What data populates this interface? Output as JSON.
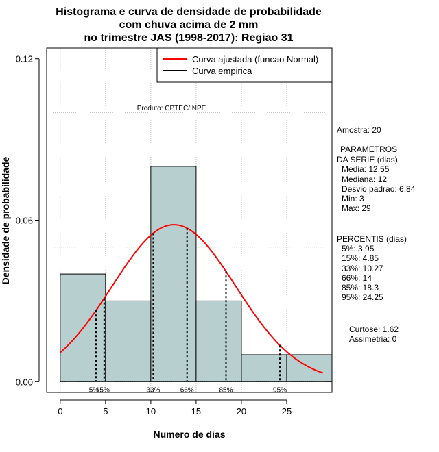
{
  "chart_data": {
    "type": "histogram",
    "title": [
      "Histograma e curva de densidade de probabilidade",
      "com chuva acima de 2 mm",
      "no trimestre JAS (1998-2017): Regiao 31"
    ],
    "xlabel": "Numero de dias",
    "ylabel": "Densidade de probabilidade",
    "xlim": [
      -1.5,
      30
    ],
    "ylim": [
      -0.004,
      0.124
    ],
    "xticks": [
      0,
      5,
      10,
      15,
      20,
      25
    ],
    "xtick_labels": [
      "0",
      "5",
      "10",
      "15",
      "20",
      "25"
    ],
    "yticks": [
      0.0,
      0.06,
      0.12
    ],
    "ytick_labels": [
      "0.00",
      "0.06",
      "0.12"
    ],
    "grid_lines_y": [
      0.1,
      0.05
    ],
    "bars": [
      {
        "x0": 0,
        "x1": 5,
        "density": 0.04
      },
      {
        "x0": 5,
        "x1": 10,
        "density": 0.03
      },
      {
        "x0": 10,
        "x1": 15,
        "density": 0.08
      },
      {
        "x0": 15,
        "x1": 20,
        "density": 0.03
      },
      {
        "x0": 20,
        "x1": 25,
        "density": 0.01
      },
      {
        "x0": 25,
        "x1": 30,
        "density": 0.01
      }
    ],
    "normal_fit": {
      "mean": 12.55,
      "sd": 6.84,
      "x_range": [
        0,
        29
      ]
    },
    "percentiles": [
      {
        "label": "5%",
        "value": 3.95
      },
      {
        "label": "15%",
        "value": 4.85
      },
      {
        "label": "33%",
        "value": 10.27
      },
      {
        "label": "66%",
        "value": 14
      },
      {
        "label": "85%",
        "value": 18.3
      },
      {
        "label": "95%",
        "value": 24.25
      }
    ],
    "legend": [
      {
        "label": "Curva ajustada (funcao Normal)",
        "color": "#ff0000"
      },
      {
        "label": "Curva empirica",
        "color": "#000000"
      }
    ],
    "legend_position": "top-right",
    "product_label": "Produto: CPTEC/INPE",
    "colors": {
      "bar_fill": "#b8cfcf",
      "curve": "#ff0000",
      "grid": "#bebebe"
    }
  },
  "stats_panel": {
    "amostra": "Amostra: 20",
    "param_title1": "PARAMETROS",
    "param_title2": "DA SERIE (dias)",
    "media": "Media: 12.55",
    "mediana": "Mediana: 12",
    "desvio": "Desvio padrao: 6.84",
    "min": "Min: 3",
    "max": "Max: 29",
    "perc_title": "PERCENTIS (dias)",
    "p5": "5%: 3.95",
    "p15": "15%: 4.85",
    "p33": "33%: 10.27",
    "p66": "66%: 14",
    "p85": "85%: 18.3",
    "p95": "95%: 24.25",
    "curtose": "Curtose: 1.62",
    "assimetria": "Assimetria: 0"
  }
}
